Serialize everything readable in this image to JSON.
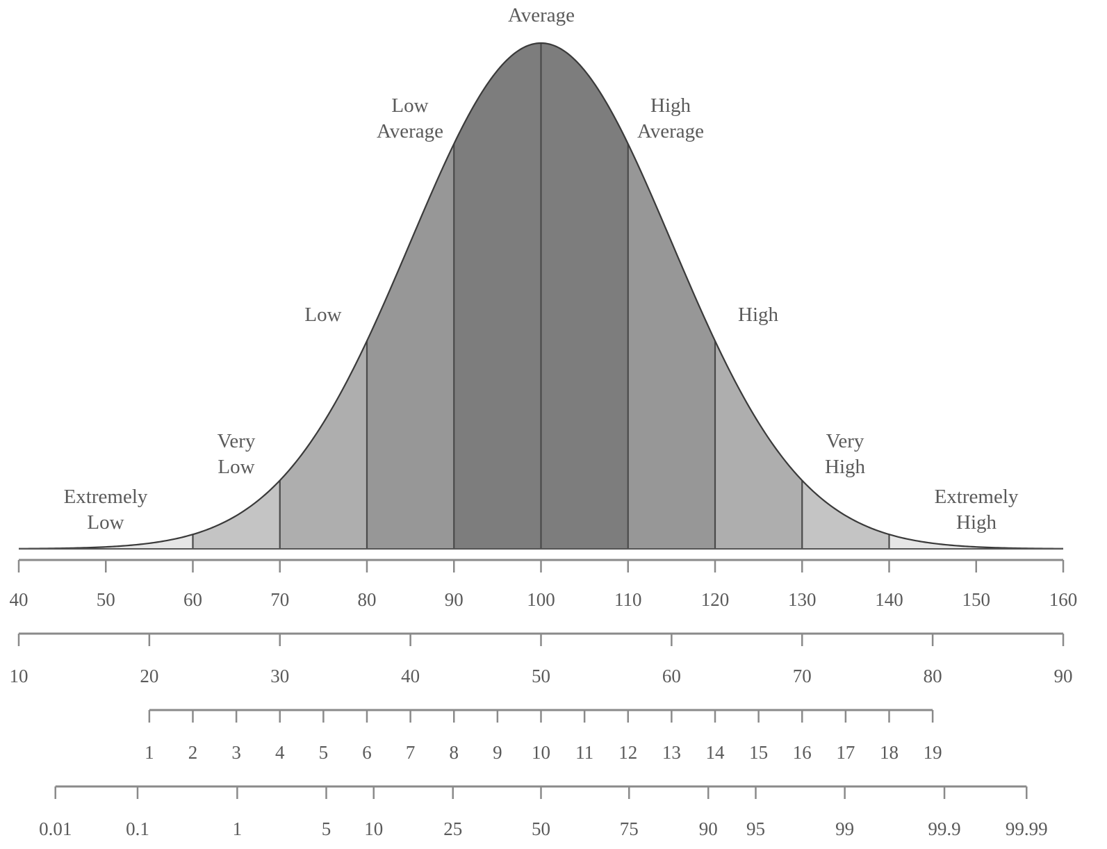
{
  "chart_data": {
    "type": "area",
    "distribution": {
      "mean": 100,
      "sd": 15
    },
    "x_range": [
      40,
      160
    ],
    "boundaries": [
      60,
      70,
      80,
      90,
      100,
      110,
      120,
      130,
      140
    ],
    "bands": [
      {
        "from": 40,
        "to": 60,
        "color": "#e6e6e6"
      },
      {
        "from": 60,
        "to": 70,
        "color": "#c4c4c4"
      },
      {
        "from": 70,
        "to": 80,
        "color": "#aeaeae"
      },
      {
        "from": 80,
        "to": 90,
        "color": "#979797"
      },
      {
        "from": 90,
        "to": 100,
        "color": "#7d7d7d"
      },
      {
        "from": 100,
        "to": 110,
        "color": "#7d7d7d"
      },
      {
        "from": 110,
        "to": 120,
        "color": "#979797"
      },
      {
        "from": 120,
        "to": 130,
        "color": "#aeaeae"
      },
      {
        "from": 130,
        "to": 140,
        "color": "#c4c4c4"
      },
      {
        "from": 140,
        "to": 160,
        "color": "#e6e6e6"
      }
    ],
    "labels": [
      {
        "lines": [
          "Extremely",
          "Low"
        ],
        "at": 50
      },
      {
        "lines": [
          "Very",
          "Low"
        ],
        "at": 65
      },
      {
        "lines": [
          "Low"
        ],
        "at": 75
      },
      {
        "lines": [
          "Low",
          "Average"
        ],
        "at": 85
      },
      {
        "lines": [
          "Average"
        ],
        "at": 100
      },
      {
        "lines": [
          "High",
          "Average"
        ],
        "at": 115
      },
      {
        "lines": [
          "High"
        ],
        "at": 125
      },
      {
        "lines": [
          "Very",
          "High"
        ],
        "at": 135
      },
      {
        "lines": [
          "Extremely",
          "High"
        ],
        "at": 150
      }
    ],
    "scales": [
      {
        "name": "standard-score",
        "span": [
          40,
          160
        ],
        "ticks": [
          {
            "label": "40",
            "at": 40
          },
          {
            "label": "50",
            "at": 50
          },
          {
            "label": "60",
            "at": 60
          },
          {
            "label": "70",
            "at": 70
          },
          {
            "label": "80",
            "at": 80
          },
          {
            "label": "90",
            "at": 90
          },
          {
            "label": "100",
            "at": 100
          },
          {
            "label": "110",
            "at": 110
          },
          {
            "label": "120",
            "at": 120
          },
          {
            "label": "130",
            "at": 130
          },
          {
            "label": "140",
            "at": 140
          },
          {
            "label": "150",
            "at": 150
          },
          {
            "label": "160",
            "at": 160
          }
        ]
      },
      {
        "name": "t-score",
        "span": [
          40,
          160
        ],
        "ticks": [
          {
            "label": "10",
            "at": 40
          },
          {
            "label": "20",
            "at": 55
          },
          {
            "label": "30",
            "at": 70
          },
          {
            "label": "40",
            "at": 85
          },
          {
            "label": "50",
            "at": 100
          },
          {
            "label": "60",
            "at": 115
          },
          {
            "label": "70",
            "at": 130
          },
          {
            "label": "80",
            "at": 145
          },
          {
            "label": "90",
            "at": 160
          }
        ]
      },
      {
        "name": "scaled-score",
        "span": [
          55,
          145
        ],
        "ticks": [
          {
            "label": "1",
            "at": 55
          },
          {
            "label": "2",
            "at": 60
          },
          {
            "label": "3",
            "at": 65
          },
          {
            "label": "4",
            "at": 70
          },
          {
            "label": "5",
            "at": 75
          },
          {
            "label": "6",
            "at": 80
          },
          {
            "label": "7",
            "at": 85
          },
          {
            "label": "8",
            "at": 90
          },
          {
            "label": "9",
            "at": 95
          },
          {
            "label": "10",
            "at": 100
          },
          {
            "label": "11",
            "at": 105
          },
          {
            "label": "12",
            "at": 110
          },
          {
            "label": "13",
            "at": 115
          },
          {
            "label": "14",
            "at": 120
          },
          {
            "label": "15",
            "at": 125
          },
          {
            "label": "16",
            "at": 130
          },
          {
            "label": "17",
            "at": 135
          },
          {
            "label": "18",
            "at": 140
          },
          {
            "label": "19",
            "at": 145
          }
        ]
      },
      {
        "name": "percentile-rank",
        "span": [
          44.21,
          155.79
        ],
        "ticks": [
          {
            "label": "0.01",
            "at": 44.21
          },
          {
            "label": "0.1",
            "at": 53.65
          },
          {
            "label": "1",
            "at": 65.1
          },
          {
            "label": "5",
            "at": 75.33
          },
          {
            "label": "10",
            "at": 80.78
          },
          {
            "label": "25",
            "at": 89.88
          },
          {
            "label": "50",
            "at": 100
          },
          {
            "label": "75",
            "at": 110.12
          },
          {
            "label": "90",
            "at": 119.22
          },
          {
            "label": "95",
            "at": 124.67
          },
          {
            "label": "99",
            "at": 134.9
          },
          {
            "label": "99.9",
            "at": 146.35
          },
          {
            "label": "99.99",
            "at": 155.79
          }
        ]
      }
    ]
  }
}
